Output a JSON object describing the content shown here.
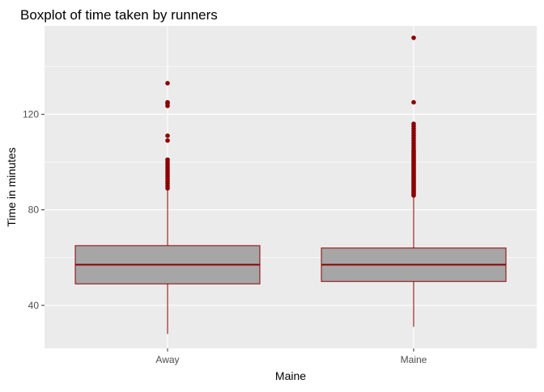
{
  "chart_data": {
    "type": "boxplot",
    "title": "Boxplot of time taken by runners",
    "xlabel": "Maine",
    "ylabel": "Time in minutes",
    "ylim": [
      22,
      157
    ],
    "yticks": [
      40,
      80,
      120
    ],
    "grid": true,
    "legend": "none",
    "colors": {
      "panel_bg": "#ebebeb",
      "grid": "#ffffff",
      "box_fill": "#a6a6a6",
      "box_line": "#8b0000",
      "outlier": "#8b0000",
      "axis_text": "#4d4d4d"
    },
    "categories": [
      "Away",
      "Maine"
    ],
    "boxes": [
      {
        "category": "Away",
        "min": 28,
        "q1": 49,
        "median": 57,
        "q3": 65,
        "max": 89,
        "outliers": [
          89,
          90,
          91,
          92,
          93,
          94,
          95,
          96,
          97,
          98,
          99,
          100,
          101,
          109,
          111,
          123.5,
          124.5,
          125,
          133
        ]
      },
      {
        "category": "Maine",
        "min": 31,
        "q1": 50,
        "median": 57,
        "q3": 64,
        "max": 85.5,
        "outliers": [
          86,
          86.5,
          87,
          87.5,
          88,
          88.5,
          89,
          89.5,
          90,
          90.5,
          91,
          91.5,
          92,
          92.5,
          93,
          93.5,
          94,
          94.5,
          95,
          95.5,
          96,
          96.5,
          97,
          97.5,
          98,
          98.5,
          99,
          99.5,
          100,
          100.5,
          101,
          101.5,
          102,
          102.5,
          103,
          103.5,
          104,
          104.5,
          105,
          106,
          107,
          108,
          109,
          110,
          111,
          112,
          113,
          114,
          115,
          116,
          125,
          152
        ]
      }
    ]
  }
}
